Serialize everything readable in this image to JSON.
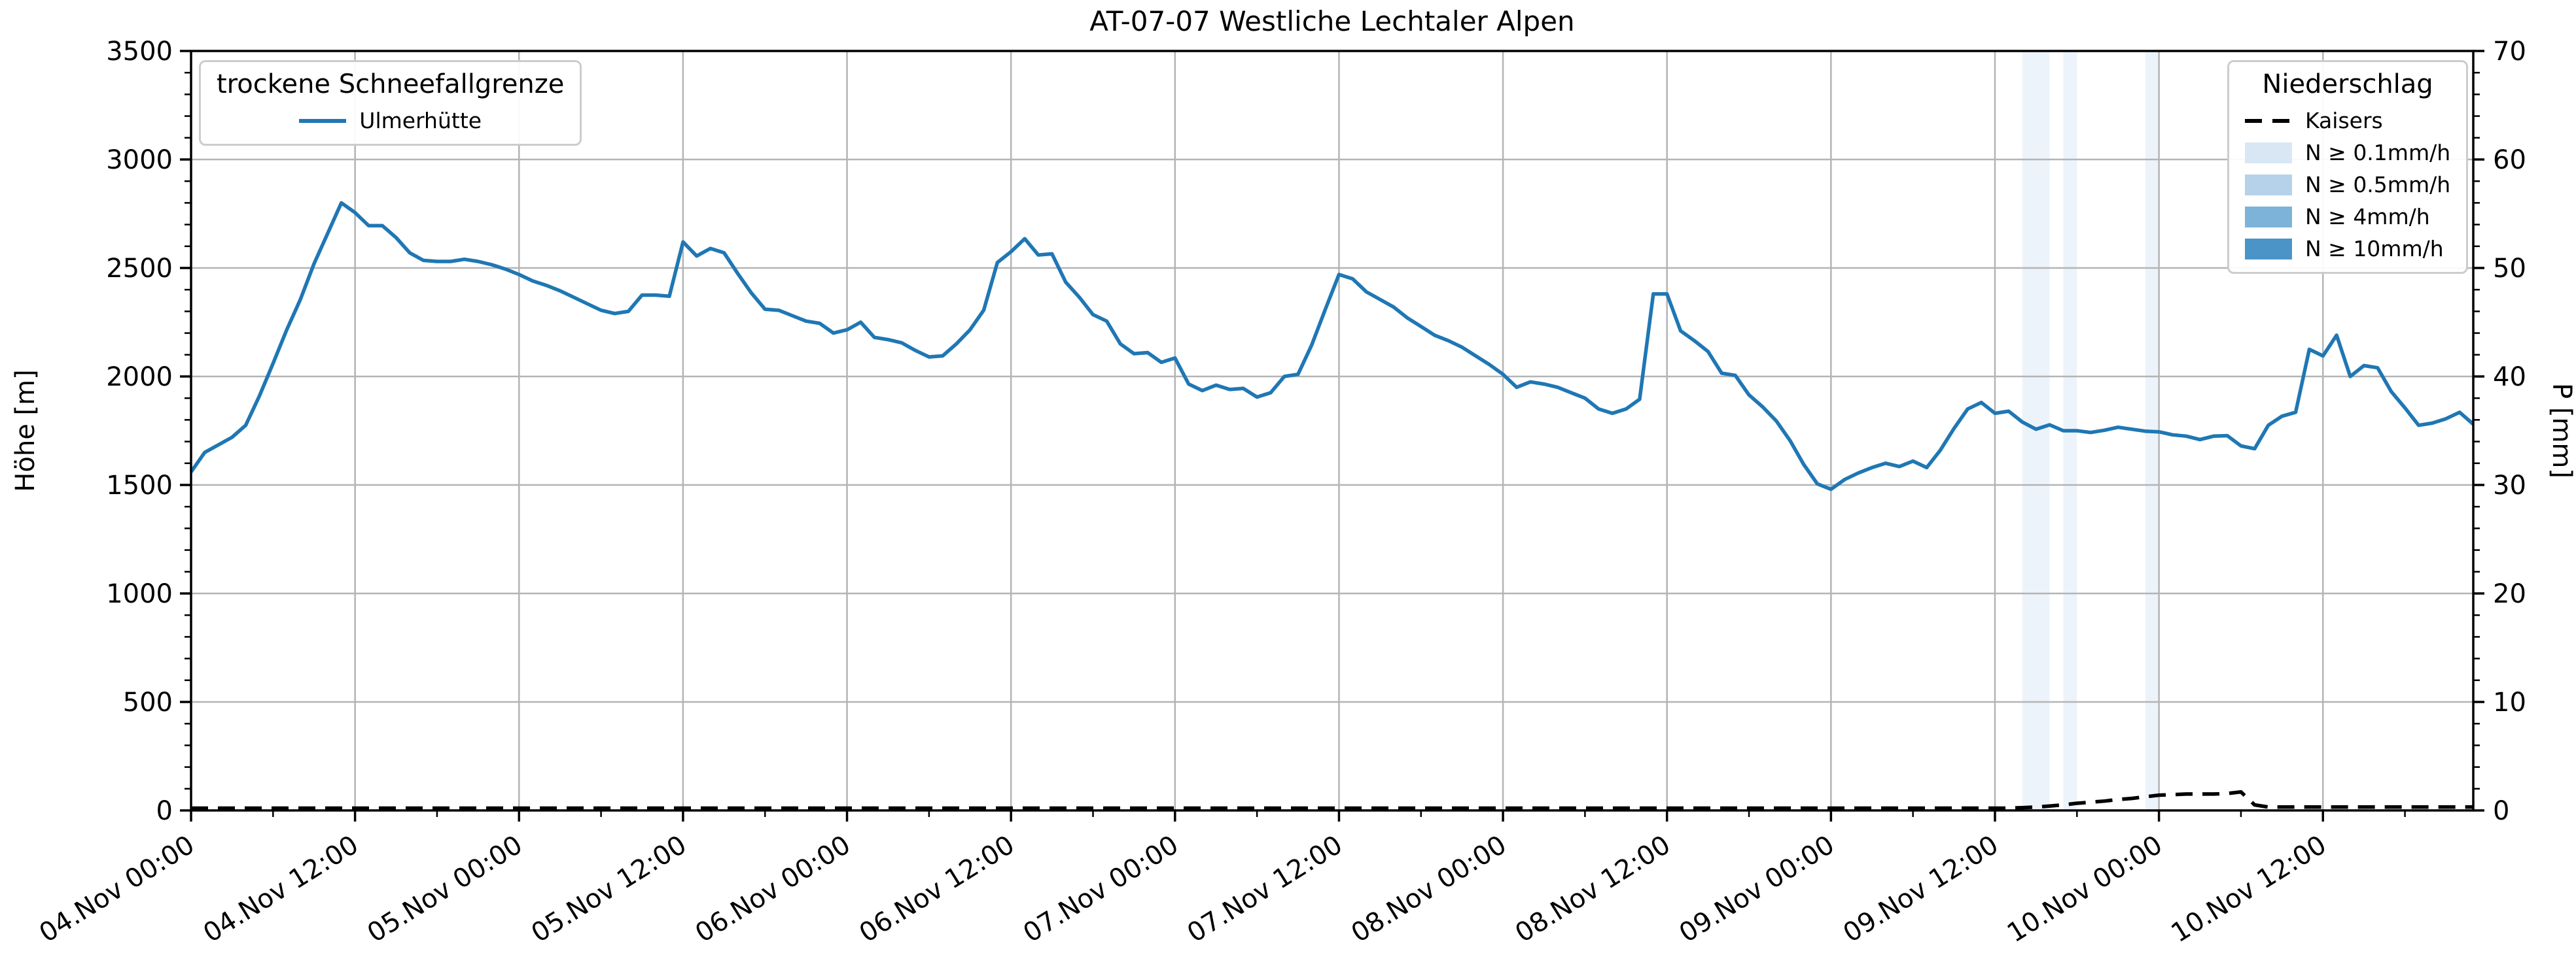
{
  "title": "AT-07-07 Westliche Lechtaler Alpen",
  "left_legend": {
    "title": "trockene Schneefallgrenze",
    "entries": [
      {
        "label": "Ulmerhütte",
        "type": "line",
        "color": "#1f77b4"
      }
    ]
  },
  "right_legend": {
    "title": "Niederschlag",
    "entries": [
      {
        "label": "Kaisers",
        "type": "dashed-line",
        "color": "#000000"
      },
      {
        "label": "N ≥ 0.1mm/h",
        "type": "patch",
        "color": "#d9e7f5"
      },
      {
        "label": "N ≥ 0.5mm/h",
        "type": "patch",
        "color": "#b5d2ea"
      },
      {
        "label": "N ≥ 4mm/h",
        "type": "patch",
        "color": "#7db3d8"
      },
      {
        "label": "N ≥ 10mm/h",
        "type": "patch",
        "color": "#4b94c8"
      }
    ]
  },
  "chart_data": {
    "type": "line",
    "title": "AT-07-07 Westliche Lechtaler Alpen",
    "ylabel_left": "Höhe [m]",
    "ylabel_right": "P [mm]",
    "ylim_left": [
      0,
      3500
    ],
    "ytick_step_left": 500,
    "yminor_step_left": 100,
    "ylim_right": [
      0,
      70
    ],
    "ytick_step_right": 10,
    "yminor_step_right": 2,
    "x_hours_total": 167,
    "x_major_step_hours": 12,
    "x_minor_step_hours": 6,
    "grid": true,
    "legend_positions": [
      "upper left",
      "upper right"
    ],
    "x_tick_labels": [
      "04.Nov 00:00",
      "04.Nov 12:00",
      "05.Nov 00:00",
      "05.Nov 12:00",
      "06.Nov 00:00",
      "06.Nov 12:00",
      "07.Nov 00:00",
      "07.Nov 12:00",
      "08.Nov 00:00",
      "08.Nov 12:00",
      "09.Nov 00:00",
      "09.Nov 12:00",
      "10.Nov 00:00",
      "10.Nov 12:00"
    ],
    "series": [
      {
        "name": "Ulmerhütte",
        "axis": "left",
        "unit": "m",
        "color": "#1f77b4",
        "style": "solid",
        "values": [
          1560,
          1650,
          1685,
          1720,
          1775,
          1910,
          2060,
          2215,
          2355,
          2520,
          2660,
          2800,
          2755,
          2695,
          2695,
          2640,
          2570,
          2535,
          2530,
          2530,
          2540,
          2530,
          2515,
          2495,
          2470,
          2440,
          2420,
          2395,
          2365,
          2335,
          2305,
          2290,
          2300,
          2375,
          2375,
          2370,
          2620,
          2555,
          2590,
          2570,
          2475,
          2385,
          2310,
          2305,
          2280,
          2255,
          2245,
          2200,
          2215,
          2250,
          2180,
          2170,
          2155,
          2120,
          2090,
          2095,
          2150,
          2215,
          2305,
          2525,
          2575,
          2635,
          2560,
          2565,
          2435,
          2365,
          2285,
          2255,
          2150,
          2105,
          2110,
          2065,
          2085,
          1965,
          1935,
          1960,
          1940,
          1945,
          1905,
          1925,
          2000,
          2010,
          2145,
          2310,
          2470,
          2450,
          2390,
          2355,
          2320,
          2270,
          2230,
          2190,
          2165,
          2135,
          2095,
          2055,
          2010,
          1950,
          1975,
          1965,
          1950,
          1925,
          1900,
          1850,
          1830,
          1850,
          1895,
          2380,
          2380,
          2210,
          2165,
          2115,
          2015,
          2005,
          1915,
          1860,
          1795,
          1705,
          1595,
          1505,
          1480,
          1525,
          1555,
          1580,
          1600,
          1585,
          1610,
          1580,
          1660,
          1760,
          1850,
          1880,
          1830,
          1840,
          1790,
          1757,
          1777,
          1750,
          1750,
          1742,
          1752,
          1766,
          1757,
          1748,
          1745,
          1731,
          1725,
          1709,
          1725,
          1727,
          1680,
          1667,
          1775,
          1817,
          1835,
          2125,
          2095,
          2190,
          2000,
          2050,
          2040,
          1930,
          1855,
          1775,
          1785,
          1805,
          1835,
          1780
        ]
      },
      {
        "name": "Kaisers",
        "axis": "right",
        "unit": "mm",
        "color": "#000000",
        "style": "dashed",
        "values": [
          0,
          0,
          0,
          0,
          0,
          0,
          0,
          0,
          0,
          0,
          0,
          0,
          0,
          0,
          0,
          0,
          0,
          0,
          0,
          0,
          0,
          0,
          0,
          0,
          0,
          0,
          0,
          0,
          0,
          0,
          0,
          0,
          0,
          0,
          0,
          0,
          0,
          0,
          0,
          0,
          0,
          0,
          0,
          0,
          0,
          0,
          0,
          0,
          0,
          0,
          0,
          0,
          0,
          0,
          0,
          0,
          0,
          0,
          0,
          0,
          0,
          0,
          0,
          0,
          0,
          0,
          0,
          0,
          0,
          0,
          0,
          0,
          0,
          0,
          0,
          0,
          0,
          0,
          0,
          0,
          0,
          0,
          0,
          0,
          0,
          0,
          0,
          0,
          0,
          0,
          0,
          0,
          0,
          0,
          0,
          0,
          0,
          0,
          0,
          0,
          0,
          0,
          0,
          0,
          0,
          0,
          0,
          0,
          0,
          0,
          0,
          0,
          0,
          0,
          0,
          0,
          0,
          0,
          0,
          0,
          0,
          0,
          0,
          0,
          0,
          0,
          0,
          0,
          0,
          0,
          0,
          0,
          0,
          0,
          0.05,
          0.1,
          0.2,
          0.3,
          0.45,
          0.55,
          0.65,
          0.8,
          0.9,
          1.05,
          1.2,
          1.25,
          1.3,
          1.3,
          1.3,
          1.35,
          1.5,
          0.3,
          0.1,
          0.1,
          0.1,
          0.1,
          0.1,
          0.1,
          0.1,
          0.1,
          0.1,
          0.1,
          0.1,
          0.1,
          0.1,
          0.1,
          0.1,
          0.1
        ]
      }
    ],
    "precip_bands": [
      {
        "class": "N ≥ 0.1mm/h",
        "from_hour": 134,
        "to_hour": 136,
        "color": "#edf3fb"
      },
      {
        "class": "N ≥ 0.1mm/h",
        "from_hour": 137,
        "to_hour": 138,
        "color": "#edf3fb"
      },
      {
        "class": "N ≥ 0.1mm/h",
        "from_hour": 143,
        "to_hour": 144,
        "color": "#edf3fb"
      }
    ],
    "colors": {
      "snowline": "#1f77b4",
      "precip_line": "#000000",
      "grid": "#b4b4b4",
      "band_01": "#edf3fb"
    }
  }
}
